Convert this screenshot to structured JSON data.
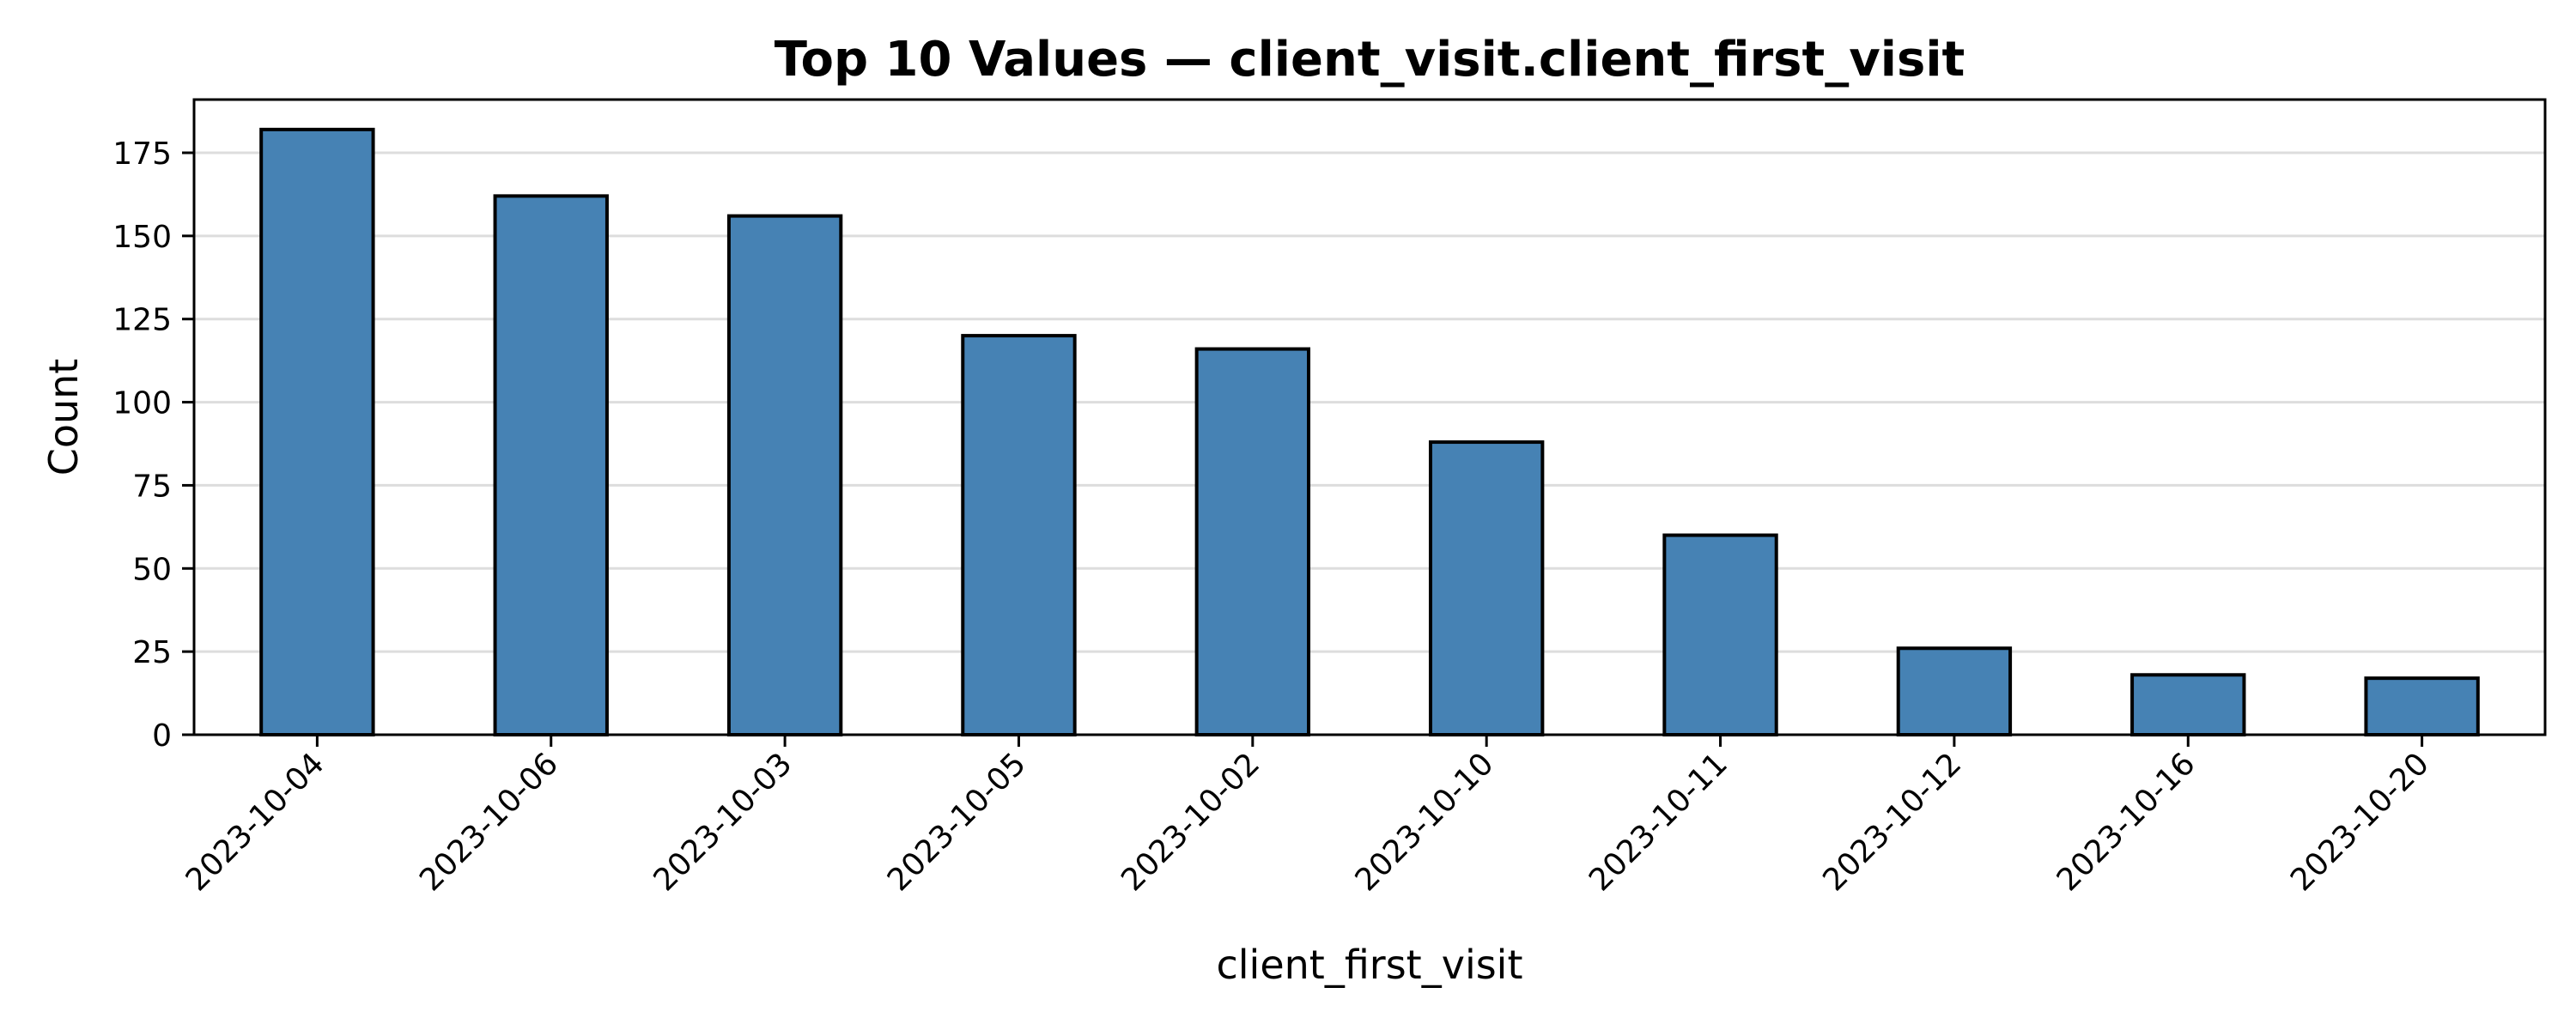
{
  "chart_data": {
    "type": "bar",
    "title": "Top 10 Values — client_visit.client_first_visit",
    "xlabel": "client_first_visit",
    "ylabel": "Count",
    "categories": [
      "2023-10-04",
      "2023-10-06",
      "2023-10-03",
      "2023-10-05",
      "2023-10-02",
      "2023-10-10",
      "2023-10-11",
      "2023-10-12",
      "2023-10-16",
      "2023-10-20"
    ],
    "values": [
      182,
      162,
      156,
      120,
      116,
      88,
      60,
      26,
      18,
      17
    ],
    "ylim": [
      0,
      191
    ],
    "yticks": [
      0,
      25,
      50,
      75,
      100,
      125,
      150,
      175
    ],
    "grid": "horizontal",
    "bar_color": "#4682b4",
    "bar_edge_color": "#000000",
    "grid_color": "#dddddd"
  }
}
